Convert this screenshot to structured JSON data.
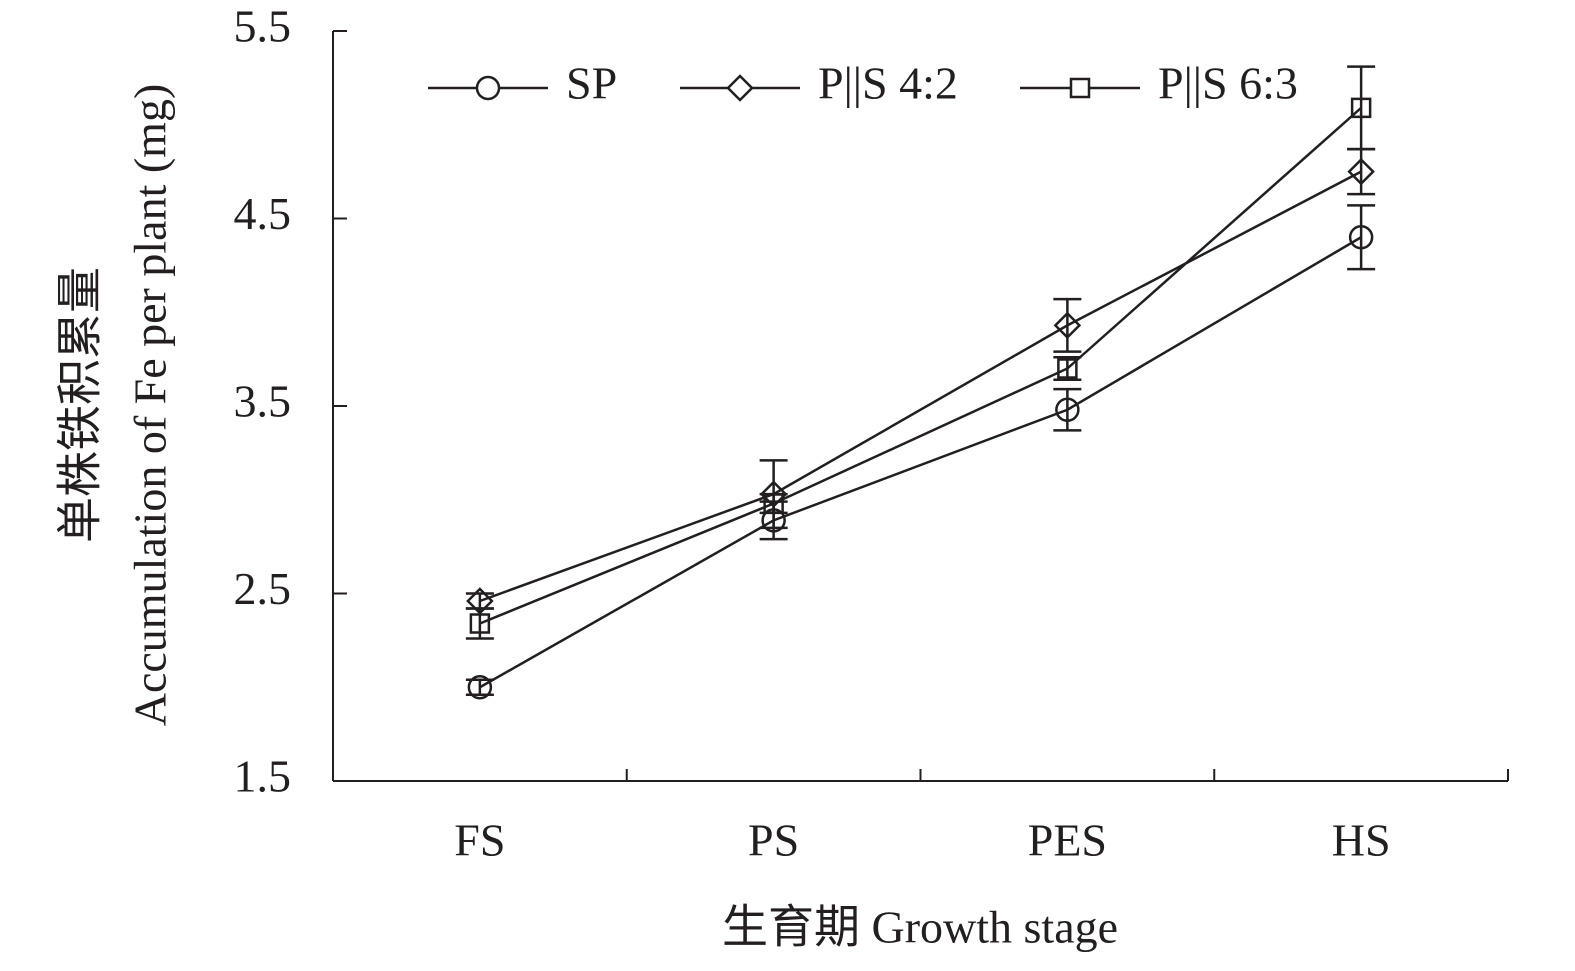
{
  "chart_data": {
    "type": "line",
    "ylabel": [
      "单株铁积累量",
      "Accumulation of Fe per plant (mg)"
    ],
    "xlabel": "生育期 Growth stage",
    "categories": [
      "FS",
      "PS",
      "PES",
      "HS"
    ],
    "series": [
      {
        "name": "SP",
        "color": "#231f20",
        "marker": "circle",
        "values": [
          2.0,
          2.89,
          3.48,
          4.4
        ],
        "errors": [
          0.04,
          0.1,
          0.11,
          0.17
        ]
      },
      {
        "name": "P||S 4:2",
        "color": "#231f20",
        "marker": "diamond",
        "values": [
          2.46,
          3.03,
          3.93,
          4.75
        ],
        "errors": [
          0.04,
          0.18,
          0.14,
          0.12
        ]
      },
      {
        "name": "P||S 6:3",
        "color": "#231f20",
        "marker": "square",
        "values": [
          2.34,
          2.98,
          3.7,
          5.09
        ],
        "errors": [
          0.08,
          0.05,
          0.06,
          0.22
        ]
      }
    ],
    "ylim": [
      1.5,
      5.5
    ],
    "yticks": [
      1.5,
      2.5,
      3.5,
      4.5,
      5.5
    ],
    "grid": false,
    "legend": "top"
  }
}
